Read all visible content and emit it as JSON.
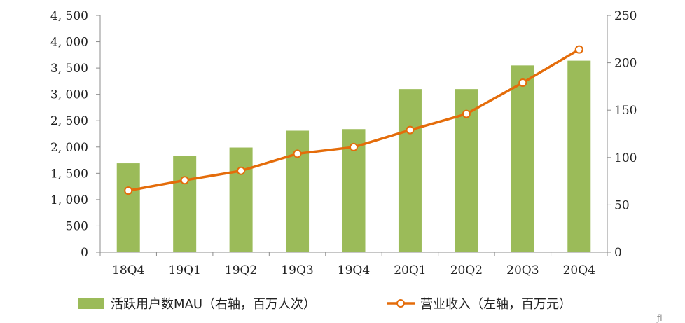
{
  "chart_data": {
    "type": "bar+line",
    "categories": [
      "18Q4",
      "19Q1",
      "19Q2",
      "19Q3",
      "19Q4",
      "20Q1",
      "20Q2",
      "20Q3",
      "20Q4"
    ],
    "series": [
      {
        "name": "活跃用户数MAU（右轴，百万人次）",
        "type": "bar",
        "axis": "left",
        "color": "#9BBB59",
        "values": [
          1690,
          1830,
          1990,
          2310,
          2340,
          3100,
          3100,
          3550,
          3640
        ]
      },
      {
        "name": "营业收入（左轴，百万元）",
        "type": "line",
        "axis": "right",
        "color": "#E46C0A",
        "values": [
          65,
          76,
          86,
          104,
          111,
          129,
          146,
          179,
          214
        ]
      }
    ],
    "left_axis": {
      "min": 0,
      "max": 4500,
      "step": 500,
      "tick_labels": [
        "0",
        "500",
        "1, 000",
        "1, 500",
        "2, 000",
        "2, 500",
        "3, 000",
        "3, 500",
        "4, 000",
        "4, 500"
      ]
    },
    "right_axis": {
      "min": 0,
      "max": 250,
      "step": 50,
      "tick_labels": [
        "0",
        "50",
        "100",
        "150",
        "200",
        "250"
      ]
    },
    "legend_position": "bottom",
    "grid": false,
    "corner_mark": "ƒl"
  }
}
